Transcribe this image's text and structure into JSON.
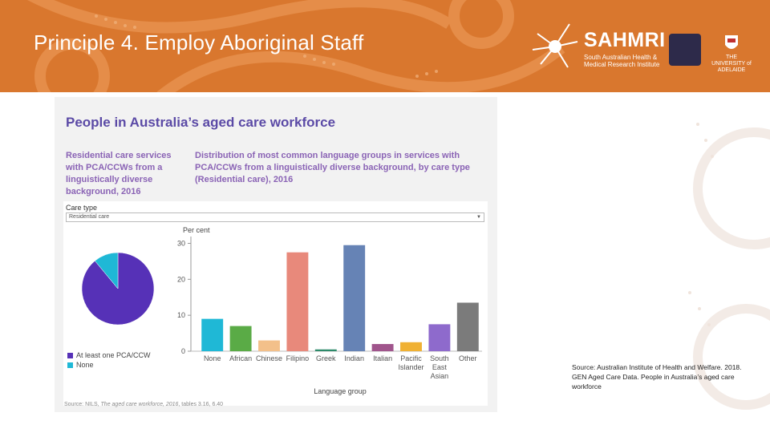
{
  "slide": {
    "title": "Principle 4. Employ Aboriginal Staff",
    "citation": "Source: Australian Institute of Health and Welfare. 2018. GEN Aged Care Data. People in Australia’s aged care workforce"
  },
  "logos": {
    "sahmri_name": "SAHMRI",
    "sahmri_subtitle": "South Australian Health & Medical Research Institute",
    "university_name": "THE UNIVERSITY of ADELAIDE"
  },
  "colors": {
    "banner": "#d9772e",
    "panel_title": "#5b4aa6",
    "subtitle": "#8a63b5"
  },
  "panel": {
    "title": "People in Australia’s aged care workforce",
    "left_subtitle": "Residential care services with PCA/CCWs from a linguistically diverse background, 2016",
    "right_subtitle": "Distribution of most common language groups in services with PCA/CCWs from a linguistically diverse background, by care type (Residential care), 2016",
    "care_type_label": "Care type",
    "dropdown_value": "Residential care",
    "source_prefix": "Source: NILS, ",
    "source_italic": "The aged care workforce, 2016",
    "source_suffix": ", tables 3.16, 6.40"
  },
  "chart_data": [
    {
      "type": "pie",
      "slices": [
        {
          "label": "At least one PCA/CCW",
          "value": 89,
          "color": "#5631b7"
        },
        {
          "label": "None",
          "value": 11,
          "color": "#1fb8d6"
        }
      ],
      "legend_position": "bottom-left"
    },
    {
      "type": "bar",
      "categories": [
        "None",
        "African",
        "Chinese",
        "Filipino",
        "Greek",
        "Indian",
        "Italian",
        "Pacific Islander",
        "South East Asian",
        "Other"
      ],
      "tick_labels": [
        [
          "None"
        ],
        [
          "African"
        ],
        [
          "Chinese"
        ],
        [
          "Filipino"
        ],
        [
          "Greek"
        ],
        [
          "Indian"
        ],
        [
          "Italian"
        ],
        [
          "Pacific",
          "Islander"
        ],
        [
          "South",
          "East",
          "Asian"
        ],
        [
          "Other"
        ]
      ],
      "values": [
        9,
        7,
        3,
        27.5,
        0.5,
        29.5,
        2,
        2.5,
        7.5,
        13.5
      ],
      "colors": [
        "#1fb8d6",
        "#5aab46",
        "#f3c08a",
        "#e8897b",
        "#2d8a6a",
        "#6683b5",
        "#a0558c",
        "#f0b133",
        "#8e6acc",
        "#7b7b7b"
      ],
      "ylabel": "Per cent",
      "xlabel": "Language group",
      "yticks": [
        0,
        10,
        20,
        30
      ],
      "ylim": [
        0,
        31
      ]
    }
  ]
}
